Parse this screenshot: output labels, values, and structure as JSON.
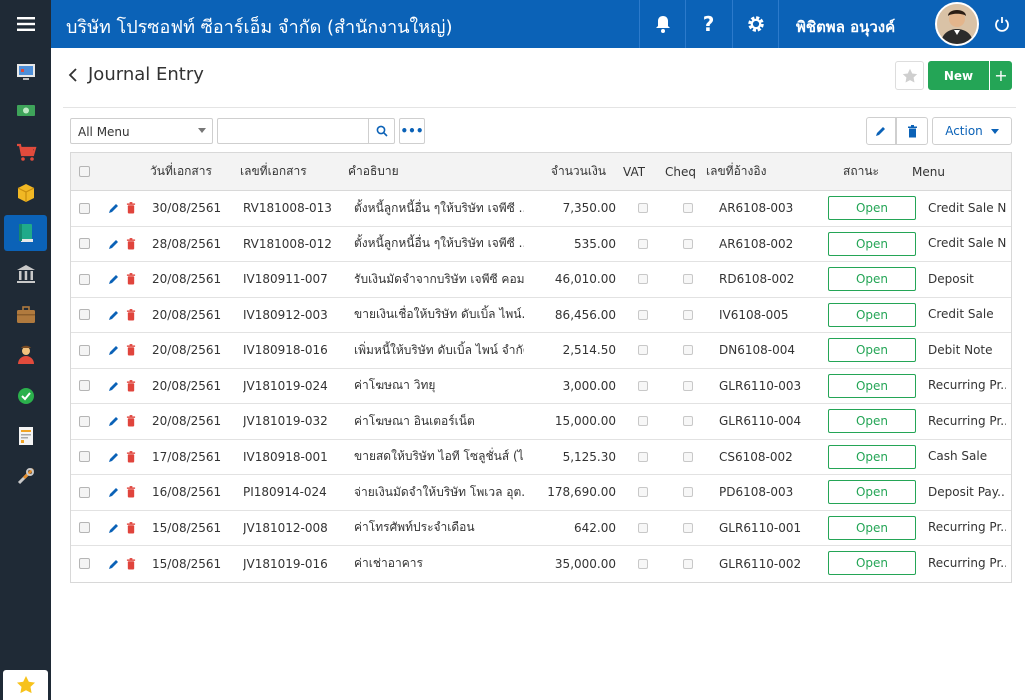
{
  "topbar": {
    "company": "บริษัท โปรซอฟท์ ซีอาร์เอ็ม จำกัด (สำนักงานใหญ่)",
    "user_name": "พิชิตพล อนุวงค์",
    "brand_color": "#0b62b7"
  },
  "sidebar": {
    "menu_icon": "hamburger-icon",
    "items": [
      {
        "icon": "monitor-icon"
      },
      {
        "icon": "money-icon"
      },
      {
        "icon": "cart-icon"
      },
      {
        "icon": "box-icon"
      },
      {
        "icon": "book-icon",
        "active": true
      },
      {
        "icon": "bank-icon"
      },
      {
        "icon": "briefcase-icon"
      },
      {
        "icon": "people-icon"
      },
      {
        "icon": "check-icon"
      },
      {
        "icon": "report-icon"
      },
      {
        "icon": "tools-icon"
      }
    ],
    "favorite_icon": "star-icon"
  },
  "page": {
    "title": "Journal Entry",
    "new_label": "New",
    "new_plus": "+"
  },
  "toolbar": {
    "menu_select_value": "All Menu",
    "search_value": "",
    "more_label": "•••",
    "action_label": "Action"
  },
  "table": {
    "headers": {
      "date": "วันที่เอกสาร",
      "doc_no": "เลขที่เอกสาร",
      "desc": "คำอธิบาย",
      "amount": "จำนวนเงิน",
      "vat": "VAT",
      "cheq": "Cheq",
      "ref": "เลขที่อ้างอิง",
      "status": "สถานะ",
      "menu": "Menu"
    },
    "rows": [
      {
        "date": "30/08/2561",
        "doc_no": "RV181008-013",
        "desc": "ตั้งหนี้ลูกหนี้อื่น ๆให้บริษัท เจพีซี ...",
        "amount": "7,350.00",
        "ref": "AR6108-003",
        "status": "Open",
        "menu": "Credit Sale N..."
      },
      {
        "date": "28/08/2561",
        "doc_no": "RV181008-012",
        "desc": "ตั้งหนี้ลูกหนี้อื่น ๆให้บริษัท เจพีซี ...",
        "amount": "535.00",
        "ref": "AR6108-002",
        "status": "Open",
        "menu": "Credit Sale N..."
      },
      {
        "date": "20/08/2561",
        "doc_no": "IV180911-007",
        "desc": "รับเงินมัดจำจากบริษัท เจพีซี คอม...",
        "amount": "46,010.00",
        "ref": "RD6108-002",
        "status": "Open",
        "menu": "Deposit"
      },
      {
        "date": "20/08/2561",
        "doc_no": "IV180912-003",
        "desc": "ขายเงินเชื่อให้บริษัท ดับเบิ้ล ไพน์...",
        "amount": "86,456.00",
        "ref": "IV6108-005",
        "status": "Open",
        "menu": "Credit Sale"
      },
      {
        "date": "20/08/2561",
        "doc_no": "IV180918-016",
        "desc": "เพิ่มหนี้ให้บริษัท ดับเบิ้ล ไพน์ จำกัด",
        "amount": "2,514.50",
        "ref": "DN6108-004",
        "status": "Open",
        "menu": "Debit Note"
      },
      {
        "date": "20/08/2561",
        "doc_no": "JV181019-024",
        "desc": "ค่าโฆษณา วิทยุ",
        "amount": "3,000.00",
        "ref": "GLR6110-003",
        "status": "Open",
        "menu": "Recurring Pr..."
      },
      {
        "date": "20/08/2561",
        "doc_no": "JV181019-032",
        "desc": "ค่าโฆษณา อินเตอร์เน็ต",
        "amount": "15,000.00",
        "ref": "GLR6110-004",
        "status": "Open",
        "menu": "Recurring Pr..."
      },
      {
        "date": "17/08/2561",
        "doc_no": "IV180918-001",
        "desc": "ขายสดให้บริษัท ไอที โซลูชั่นส์ (ไ...",
        "amount": "5,125.30",
        "ref": "CS6108-002",
        "status": "Open",
        "menu": "Cash Sale"
      },
      {
        "date": "16/08/2561",
        "doc_no": "PI180914-024",
        "desc": "จ่ายเงินมัดจำให้บริษัท โพเวล อุต...",
        "amount": "178,690.00",
        "ref": "PD6108-003",
        "status": "Open",
        "menu": "Deposit Pay..."
      },
      {
        "date": "15/08/2561",
        "doc_no": "JV181012-008",
        "desc": "ค่าโทรศัพท์ประจำเดือน",
        "amount": "642.00",
        "ref": "GLR6110-001",
        "status": "Open",
        "menu": "Recurring Pr..."
      },
      {
        "date": "15/08/2561",
        "doc_no": "JV181019-016",
        "desc": "ค่าเช่าอาคาร",
        "amount": "35,000.00",
        "ref": "GLR6110-002",
        "status": "Open",
        "menu": "Recurring Pr..."
      }
    ]
  },
  "colors": {
    "status_open": "#24a556",
    "edit_blue": "#0b62b7",
    "delete_red": "#e0443c"
  }
}
